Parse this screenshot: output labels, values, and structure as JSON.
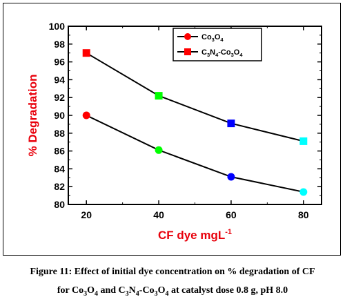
{
  "chart_data": {
    "type": "line",
    "x": [
      20,
      40,
      60,
      80
    ],
    "series": [
      {
        "name": "Co3O4",
        "values": [
          90.0,
          86.1,
          83.1,
          81.4
        ],
        "marker": "circle",
        "line_color": "#000000",
        "point_colors": [
          "#ff0000",
          "#00ff00",
          "#0000ff",
          "#00ffff"
        ]
      },
      {
        "name": "C3N4-Co3O4",
        "values": [
          97.0,
          92.2,
          89.1,
          87.1
        ],
        "marker": "square",
        "line_color": "#000000",
        "point_colors": [
          "#ff0000",
          "#00ff00",
          "#0000ff",
          "#00ffff"
        ]
      }
    ],
    "xlabel": "CF dye mgL-1",
    "ylabel": "% Degradation",
    "xlim": [
      15,
      85
    ],
    "ylim": [
      80,
      100
    ],
    "xticks": [
      20,
      40,
      60,
      80
    ],
    "yticks": [
      80,
      82,
      84,
      86,
      88,
      90,
      92,
      94,
      96,
      98,
      100
    ],
    "grid": false,
    "legend_position": "top-right",
    "axis_title_color": "#e8000b"
  },
  "caption": {
    "line1": "Figure 11: Effect of initial dye concentration on % degradation of CF",
    "line2": "for Co3O4 and C3N4-Co3O4 at catalyst dose 0.8 g, pH 8.0"
  }
}
